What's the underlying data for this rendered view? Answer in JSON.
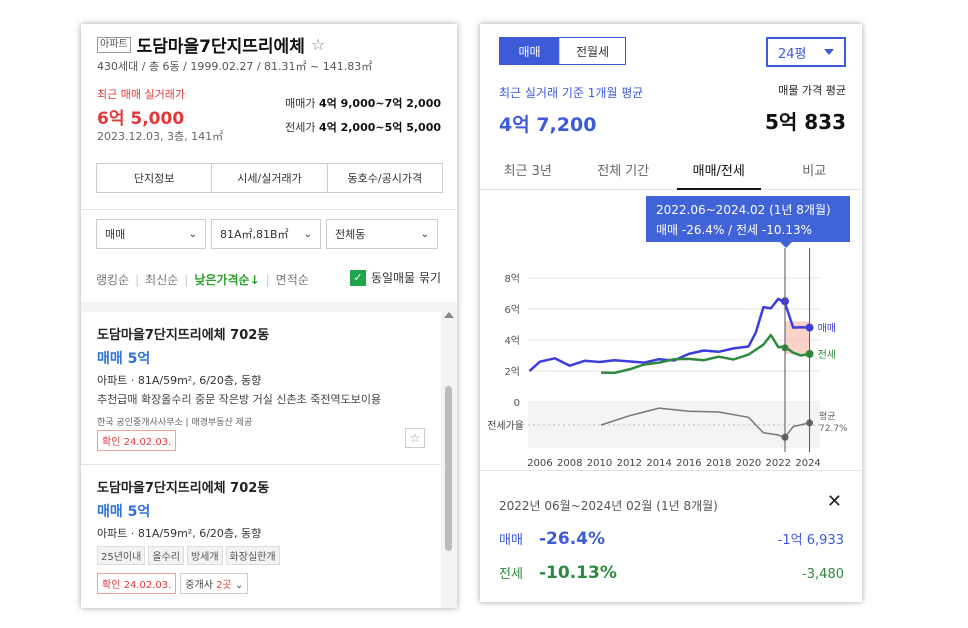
{
  "complex": {
    "type_badge": "아파트",
    "name": "도담마을7단지뜨리에체",
    "star": "☆",
    "info": "430세대 / 총 6동 / 1999.02.27 / 81.31㎡ ~ 141.83㎡",
    "recent_label": "최근 매매 실거래가",
    "recent_price": "6억 5,000",
    "recent_date": "2023.12.03, 3층, 141㎡",
    "sale_range_label": "매매가",
    "sale_range_value": "4억 9,000~7억 2,000",
    "jeonse_range_label": "전세가",
    "jeonse_range_value": "4억 2,000~5억 5,000"
  },
  "info_tabs": [
    "단지정보",
    "시세/실거래가",
    "동호수/공시가격"
  ],
  "filters": {
    "trade": "매매",
    "area": "81A㎡,81B㎡",
    "dong": "전체동"
  },
  "sort": {
    "items": [
      "랭킹순",
      "최신순",
      "낮은가격순↓",
      "면적순"
    ],
    "active_index": 2,
    "group_label": "동일매물 묶기",
    "group_checked": true
  },
  "listings": [
    {
      "name": "도담마을7단지뜨리에체 702동",
      "price": "매매 5억",
      "spec": "아파트 · 81A/59m², 6/20층, 동향",
      "desc": "추천급매 확장올수리 중문 작은방 거실 신촌초 죽전역도보이용",
      "agent": "한국 공인중개사사무소 | 매경부동산 제공",
      "confirm": "확인 24.02.03."
    },
    {
      "name": "도담마을7단지뜨리에체 702동",
      "price": "매매 5억",
      "spec": "아파트 · 81A/59m², 6/20층, 동향",
      "tags": [
        "25년이내",
        "올수리",
        "방세개",
        "화장실한개"
      ],
      "confirm": "확인 24.02.03.",
      "agent_count_label": "중개사",
      "agent_count_num": "2곳"
    }
  ],
  "right": {
    "seg_sale": "매매",
    "seg_rent": "전월세",
    "pyeong": "24평",
    "avg_label": "최근 실거래 기준 1개월 평균",
    "avg_value": "4억 7,200",
    "listing_avg_label": "매물 가격 평균",
    "listing_avg_value": "5억 833",
    "chart_tabs": [
      "최근 3년",
      "전체 기간",
      "매매/전세",
      "비교"
    ],
    "chart_tab_active": 2,
    "tooltip_line1": "2022.06~2024.02 (1년 8개월)",
    "tooltip_line2": "매매 -26.4%  /  전세 -10.13%"
  },
  "detail": {
    "range": "2022년 06월~2024년 02월 (1년 8개월)",
    "close": "✕",
    "sale_label": "매매",
    "sale_pct": "-26.4%",
    "sale_amt": "-1억 6,933",
    "jeonse_label": "전세",
    "jeonse_pct": "-10.13%",
    "jeonse_amt": "-3,480"
  },
  "chart_data": {
    "type": "line",
    "x_ticks": [
      "2006",
      "2008",
      "2010",
      "2012",
      "2014",
      "2016",
      "2018",
      "2020",
      "2022",
      "2024"
    ],
    "y_ticks": [
      "8억",
      "6억",
      "4억",
      "2억",
      "0"
    ],
    "ylim": [
      0,
      8
    ],
    "x_range": [
      2005.2,
      2024.8
    ],
    "highlight_range": [
      2022.45,
      2024.1
    ],
    "series": [
      {
        "name": "매매",
        "color": "#3d3ddb",
        "points": [
          [
            2005.3,
            2.0
          ],
          [
            2006,
            2.6
          ],
          [
            2007,
            2.7
          ],
          [
            2008,
            2.4
          ],
          [
            2009,
            2.6
          ],
          [
            2010,
            2.7
          ],
          [
            2011,
            2.7
          ],
          [
            2012,
            2.5
          ],
          [
            2013,
            2.6
          ],
          [
            2014,
            2.7
          ],
          [
            2015,
            2.8
          ],
          [
            2016,
            3.1
          ],
          [
            2017,
            3.2
          ],
          [
            2018,
            3.3
          ],
          [
            2019,
            3.4
          ],
          [
            2020,
            3.7
          ],
          [
            2020.5,
            4.5
          ],
          [
            2021,
            6.0
          ],
          [
            2021.5,
            6.1
          ],
          [
            2022,
            6.6
          ],
          [
            2022.45,
            6.5
          ],
          [
            2023,
            4.8
          ],
          [
            2023.5,
            4.7
          ],
          [
            2024.1,
            4.8
          ]
        ]
      },
      {
        "name": "전세",
        "color": "#2f8a3e",
        "points": [
          [
            2010.1,
            1.9
          ],
          [
            2011,
            2.0
          ],
          [
            2012,
            2.1
          ],
          [
            2013,
            2.3
          ],
          [
            2014,
            2.6
          ],
          [
            2015,
            2.7
          ],
          [
            2016,
            2.9
          ],
          [
            2017,
            2.7
          ],
          [
            2018,
            2.8
          ],
          [
            2019,
            2.8
          ],
          [
            2020,
            3.0
          ],
          [
            2020.5,
            3.5
          ],
          [
            2021,
            3.7
          ],
          [
            2021.5,
            4.2
          ],
          [
            2022,
            3.6
          ],
          [
            2022.45,
            3.5
          ],
          [
            2023,
            3.3
          ],
          [
            2023.5,
            3.0
          ],
          [
            2024.1,
            3.1
          ]
        ]
      }
    ],
    "ratio_label": "전세가율",
    "ratio_series": {
      "points": [
        [
          2010.1,
          70
        ],
        [
          2012,
          80
        ],
        [
          2014,
          92
        ],
        [
          2016,
          90
        ],
        [
          2018,
          85
        ],
        [
          2020,
          80
        ],
        [
          2021,
          62
        ],
        [
          2022,
          55
        ],
        [
          2022.45,
          54
        ],
        [
          2023,
          70
        ],
        [
          2024.1,
          72.7
        ]
      ],
      "end_label": "평균",
      "end_value": "72.7%"
    }
  }
}
